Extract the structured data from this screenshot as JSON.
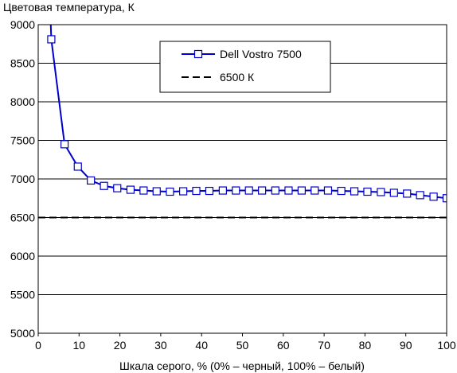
{
  "chart_data": {
    "type": "line",
    "ylabel": "Цветовая температура, К",
    "xlabel": "Шкала серого, % (0% – черный, 100% – белый)",
    "xlim": [
      0,
      100
    ],
    "ylim": [
      5000,
      9000
    ],
    "x_ticks": [
      0,
      10,
      20,
      30,
      40,
      50,
      60,
      70,
      80,
      90,
      100
    ],
    "y_ticks": [
      5000,
      5500,
      6000,
      6500,
      7000,
      7500,
      8000,
      8500,
      9000
    ],
    "grid": "horizontal",
    "legend_position": "top-center",
    "series": [
      {
        "name": "Dell Vostro 7500",
        "color": "#0000cc",
        "marker": "square",
        "x": [
          3.2,
          6.45,
          9.7,
          12.9,
          16.1,
          19.35,
          22.6,
          25.8,
          29,
          32.25,
          35.5,
          38.7,
          41.9,
          45.2,
          48.4,
          51.6,
          54.8,
          58.05,
          61.3,
          64.5,
          67.7,
          70.95,
          74.2,
          77.4,
          80.6,
          83.9,
          87.1,
          90.3,
          93.5,
          96.8,
          100
        ],
        "y": [
          8810,
          7450,
          7160,
          6980,
          6910,
          6880,
          6860,
          6850,
          6840,
          6835,
          6840,
          6845,
          6845,
          6850,
          6850,
          6850,
          6850,
          6850,
          6850,
          6850,
          6850,
          6850,
          6845,
          6840,
          6835,
          6830,
          6820,
          6810,
          6790,
          6770,
          6750
        ]
      },
      {
        "name": "6500 К",
        "color": "#000000",
        "style": "dashed",
        "x": [
          0,
          100
        ],
        "y": [
          6500,
          6500
        ]
      }
    ]
  }
}
